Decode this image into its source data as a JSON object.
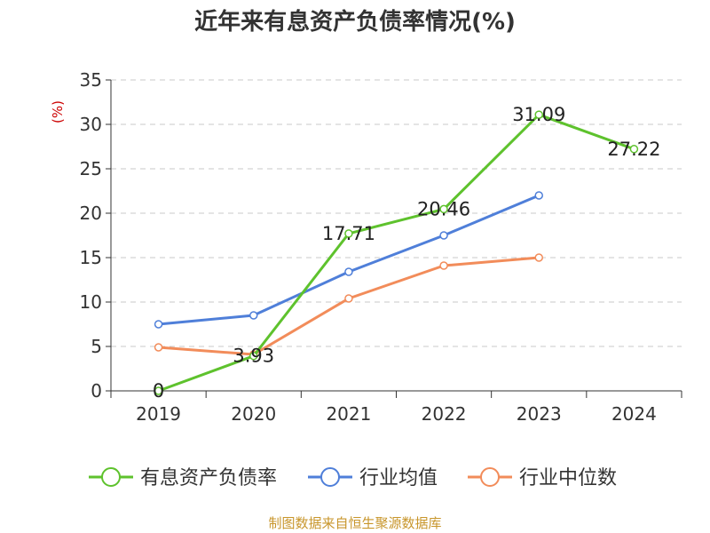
{
  "title": "近年来有息资产负债率情况(%)",
  "source": "制图数据来自恒生聚源数据库",
  "colors": {
    "series_0": "#5ec22d",
    "series_1": "#4f7fd9",
    "series_2": "#f28c5a",
    "axis": "#333333",
    "grid": "#c8c8c8",
    "unit": "#cc0000"
  },
  "chart_data": {
    "type": "line",
    "ylabel": "(%)",
    "ylim": [
      0,
      35
    ],
    "yticks": [
      0,
      5,
      10,
      15,
      20,
      25,
      30,
      35
    ],
    "grid": "horizontal-dashed",
    "legend_position": "bottom",
    "categories": [
      "2019",
      "2020",
      "2021",
      "2022",
      "2023",
      "2024"
    ],
    "series": [
      {
        "name": "有息资产负债率",
        "values": [
          0,
          3.93,
          17.71,
          20.46,
          31.09,
          27.22
        ],
        "labels": [
          "0",
          "3.93",
          "17.71",
          "20.46",
          "31.09",
          "27.22"
        ]
      },
      {
        "name": "行业均值",
        "values": [
          7.5,
          8.5,
          13.4,
          17.5,
          22.0,
          null
        ]
      },
      {
        "name": "行业中位数",
        "values": [
          4.9,
          4.1,
          10.4,
          14.1,
          15.0,
          null
        ]
      }
    ]
  }
}
